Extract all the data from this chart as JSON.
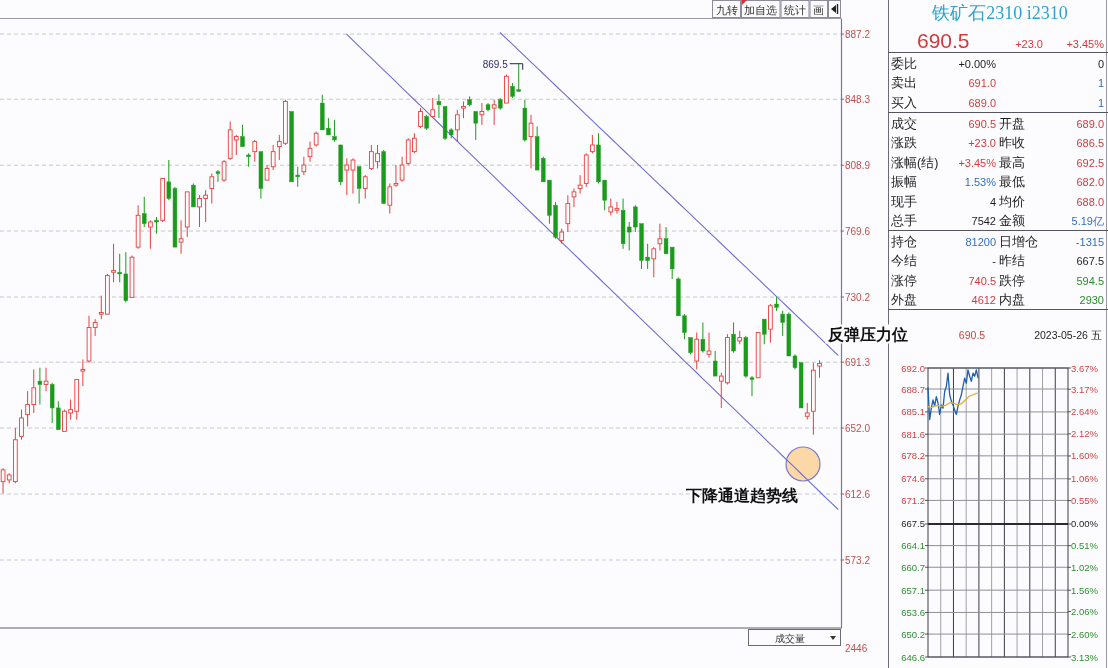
{
  "chart_data": [
    {
      "type": "candlestick",
      "categories": [
        null,
        null,
        null,
        null,
        null,
        null,
        null,
        null,
        null,
        null,
        null,
        null,
        null,
        null,
        null,
        null,
        null,
        null,
        null,
        null,
        null,
        null,
        null,
        null,
        null,
        null,
        null,
        null,
        null,
        null,
        null,
        null,
        null,
        null,
        null,
        null,
        null,
        null,
        null,
        null,
        null,
        null,
        null,
        null,
        null,
        null,
        null,
        null,
        null,
        null,
        null,
        null,
        null,
        null,
        null,
        null,
        null,
        null,
        null,
        null,
        null,
        null,
        null,
        null,
        null,
        null,
        null,
        null,
        null,
        null,
        null,
        null,
        null,
        null,
        null,
        null,
        null,
        null,
        null,
        null,
        null,
        null,
        null,
        null,
        null,
        null,
        null,
        null,
        null,
        null,
        null,
        null,
        null,
        null,
        null,
        null,
        null,
        null,
        null,
        null,
        null,
        null,
        null,
        null,
        null,
        null,
        null,
        null,
        null,
        null,
        null,
        null,
        null,
        null,
        null,
        null,
        null,
        null,
        null,
        null,
        null,
        null,
        null,
        null,
        null,
        null,
        null,
        null,
        null,
        null,
        null,
        null,
        null,
        null,
        null,
        null,
        null
      ],
      "ohlc": [
        [
          620,
          628,
          613,
          627
        ],
        [
          621,
          625,
          619,
          624
        ],
        [
          620,
          652,
          619,
          645
        ],
        [
          647,
          663,
          645,
          658
        ],
        [
          660,
          674,
          653,
          666
        ],
        [
          666,
          687,
          661,
          676
        ],
        [
          680,
          688,
          666,
          678
        ],
        [
          678,
          688,
          674,
          680
        ],
        [
          678,
          679,
          655,
          664
        ],
        [
          664,
          668,
          651,
          651
        ],
        [
          650,
          663,
          650,
          662
        ],
        [
          661,
          669,
          657,
          663
        ],
        [
          662,
          681,
          657,
          681
        ],
        [
          686,
          693,
          677,
          687
        ],
        [
          692,
          719,
          691,
          712
        ],
        [
          712,
          717,
          707,
          715
        ],
        [
          720,
          731,
          717,
          721
        ],
        [
          720,
          744,
          720,
          743
        ],
        [
          745,
          762,
          739,
          746
        ],
        [
          745,
          756,
          739,
          744
        ],
        [
          744,
          757,
          727,
          728
        ],
        [
          730,
          755,
          730,
          754
        ],
        [
          760,
          785,
          759,
          779
        ],
        [
          780,
          790,
          772,
          774
        ],
        [
          772,
          776,
          759,
          775
        ],
        [
          776,
          778,
          768,
          775
        ],
        [
          776,
          801,
          775,
          801
        ],
        [
          799,
          812,
          788,
          789
        ],
        [
          795,
          796,
          760,
          760
        ],
        [
          763,
          776,
          756,
          765
        ],
        [
          772,
          793,
          766,
          793
        ],
        [
          797,
          798,
          784,
          784
        ],
        [
          784,
          791,
          772,
          789
        ],
        [
          789,
          794,
          775,
          791
        ],
        [
          795,
          804,
          786,
          802
        ],
        [
          805,
          806,
          799,
          804
        ],
        [
          800,
          812,
          799,
          811
        ],
        [
          813,
          835,
          812,
          830
        ],
        [
          824,
          827,
          815,
          826
        ],
        [
          826,
          833,
          820,
          820
        ],
        [
          815,
          816,
          808,
          814
        ],
        [
          817,
          824,
          811,
          823
        ],
        [
          817,
          817,
          789,
          795
        ],
        [
          800,
          809,
          800,
          807
        ],
        [
          808,
          821,
          806,
          817
        ],
        [
          820,
          827,
          812,
          823
        ],
        [
          822,
          848,
          821,
          847
        ],
        [
          841,
          841,
          799,
          799
        ],
        [
          803,
          808,
          796,
          802
        ],
        [
          805,
          814,
          803,
          809
        ],
        [
          814,
          823,
          811,
          819
        ],
        [
          821,
          829,
          820,
          828
        ],
        [
          846,
          851,
          830,
          830
        ],
        [
          831,
          837,
          827,
          827
        ],
        [
          826,
          836,
          823,
          824
        ],
        [
          821,
          821,
          797,
          799
        ],
        [
          806,
          813,
          791,
          809
        ],
        [
          806,
          813,
          792,
          812
        ],
        [
          808,
          808,
          786,
          795
        ],
        [
          795,
          803,
          789,
          802
        ],
        [
          807,
          821,
          806,
          817
        ],
        [
          811,
          821,
          807,
          816
        ],
        [
          817,
          818,
          786,
          786
        ],
        [
          785,
          798,
          780,
          796
        ],
        [
          797,
          809,
          796,
          798
        ],
        [
          800,
          814,
          799,
          809
        ],
        [
          810,
          825,
          809,
          824
        ],
        [
          817,
          828,
          816,
          825
        ],
        [
          832,
          843,
          831,
          841
        ],
        [
          838,
          839,
          830,
          831
        ],
        [
          838,
          849,
          838,
          842
        ],
        [
          847,
          851,
          837,
          845
        ],
        [
          844,
          844,
          824,
          825
        ],
        [
          830,
          831,
          825,
          827
        ],
        [
          830,
          842,
          823,
          839
        ],
        [
          843,
          847,
          837,
          844
        ],
        [
          848,
          850,
          844,
          845
        ],
        [
          841,
          841,
          824,
          834
        ],
        [
          839,
          846,
          833,
          841
        ],
        [
          845,
          846,
          841,
          842
        ],
        [
          843,
          848,
          833,
          845
        ],
        [
          848,
          849,
          842,
          843
        ],
        [
          846,
          863,
          846,
          862
        ],
        [
          856,
          858,
          849,
          850
        ],
        [
          854,
          869.5,
          853,
          853
        ],
        [
          843,
          848,
          823,
          824
        ],
        [
          826,
          839,
          807,
          834
        ],
        [
          826,
          832,
          806,
          806
        ],
        [
          813,
          814,
          799,
          799
        ],
        [
          800,
          800,
          774,
          779
        ],
        [
          785,
          787,
          765,
          766
        ],
        [
          764,
          771,
          762,
          769
        ],
        [
          774,
          791,
          769,
          786
        ],
        [
          790,
          795,
          784,
          793
        ],
        [
          795,
          803,
          792,
          797
        ],
        [
          798,
          816,
          796,
          815
        ],
        [
          817,
          827,
          816,
          821
        ],
        [
          821,
          828,
          798,
          799
        ],
        [
          800,
          800,
          782,
          788
        ],
        [
          781,
          789,
          779,
          784
        ],
        [
          782,
          787,
          780,
          783
        ],
        [
          782,
          789,
          759,
          762
        ],
        [
          772,
          775,
          758,
          769
        ],
        [
          784,
          785,
          769,
          772
        ],
        [
          774,
          774,
          747,
          752
        ],
        [
          754,
          762,
          747,
          752
        ],
        [
          753,
          760,
          742,
          759
        ],
        [
          762,
          774,
          758,
          765
        ],
        [
          765,
          772,
          756,
          756
        ],
        [
          760,
          760,
          741,
          747
        ],
        [
          741,
          742,
          719,
          719
        ],
        [
          719,
          720,
          705,
          709
        ],
        [
          706,
          706,
          696,
          697
        ],
        [
          692,
          709,
          687,
          705
        ],
        [
          705,
          715,
          697,
          698
        ],
        [
          696,
          709,
          694,
          698
        ],
        [
          692,
          698,
          683,
          683
        ],
        [
          680,
          685,
          664,
          683
        ],
        [
          679,
          708,
          678,
          706
        ],
        [
          708,
          715,
          697,
          698
        ],
        [
          704,
          710,
          702,
          706
        ],
        [
          706,
          707,
          682,
          683
        ],
        [
          682,
          683,
          671,
          681
        ],
        [
          682,
          709,
          682,
          709
        ],
        [
          717,
          717,
          702,
          708
        ],
        [
          711,
          726,
          703,
          725
        ],
        [
          726,
          730,
          722,
          724
        ],
        [
          720,
          722,
          707,
          715
        ],
        [
          720,
          721,
          695,
          695
        ],
        [
          695,
          696,
          687,
          688
        ],
        [
          691,
          691,
          664,
          664
        ],
        [
          659,
          667,
          657,
          661
        ],
        [
          662,
          691,
          648,
          686.5
        ],
        [
          689.0,
          692.5,
          682.0,
          690.5
        ],
        null,
        null,
        null
      ],
      "colors": [
        "#e5403b",
        "#e5403b",
        "#e5403b",
        "#e5403b",
        "#e5403b",
        "#e5403b",
        "#1b9b1b",
        "#e5403b",
        "#1b9b1b",
        "#1b9b1b",
        "#e5403b",
        "#e5403b",
        "#e5403b",
        "#e5403b",
        "#e5403b",
        "#e5403b",
        "#e5403b",
        "#e5403b",
        "#e5403b",
        "#1b9b1b",
        "#1b9b1b",
        "#e5403b",
        "#e5403b",
        "#1b9b1b",
        "#e5403b",
        "#1b9b1b",
        "#e5403b",
        "#1b9b1b",
        "#1b9b1b",
        "#e5403b",
        "#e5403b",
        "#1b9b1b",
        "#e5403b",
        "#e5403b",
        "#e5403b",
        "#1b9b1b",
        "#e5403b",
        "#e5403b",
        "#e5403b",
        "#1b9b1b",
        "#1b9b1b",
        "#e5403b",
        "#1b9b1b",
        "#e5403b",
        "#e5403b",
        "#e5403b",
        "#e5403b",
        "#1b9b1b",
        "#1b9b1b",
        "#e5403b",
        "#e5403b",
        "#e5403b",
        "#1b9b1b",
        "#1b9b1b",
        "#1b9b1b",
        "#1b9b1b",
        "#e5403b",
        "#e5403b",
        "#1b9b1b",
        "#e5403b",
        "#e5403b",
        "#e5403b",
        "#1b9b1b",
        "#e5403b",
        "#e5403b",
        "#e5403b",
        "#e5403b",
        "#e5403b",
        "#e5403b",
        "#1b9b1b",
        "#e5403b",
        "#1b9b1b",
        "#1b9b1b",
        "#1b9b1b",
        "#e5403b",
        "#e5403b",
        "#1b9b1b",
        "#1b9b1b",
        "#e5403b",
        "#1b9b1b",
        "#e5403b",
        "#1b9b1b",
        "#e5403b",
        "#1b9b1b",
        "#1b9b1b",
        "#1b9b1b",
        "#e5403b",
        "#1b9b1b",
        "#1b9b1b",
        "#1b9b1b",
        "#1b9b1b",
        "#e5403b",
        "#e5403b",
        "#e5403b",
        "#e5403b",
        "#e5403b",
        "#e5403b",
        "#1b9b1b",
        "#1b9b1b",
        "#e5403b",
        "#e5403b",
        "#1b9b1b",
        "#1b9b1b",
        "#1b9b1b",
        "#1b9b1b",
        "#1b9b1b",
        "#e5403b",
        "#e5403b",
        "#1b9b1b",
        "#1b9b1b",
        "#1b9b1b",
        "#1b9b1b",
        "#1b9b1b",
        "#e5403b",
        "#1b9b1b",
        "#e5403b",
        "#1b9b1b",
        "#e5403b",
        "#e5403b",
        "#1b9b1b",
        "#e5403b",
        "#1b9b1b",
        "#1b9b1b",
        "#e5403b",
        "#1b9b1b",
        "#e5403b",
        "#1b9b1b",
        "#1b9b1b",
        "#1b9b1b",
        "#1b9b1b",
        "#1b9b1b",
        "#e5403b",
        "#e5403b",
        "#e5403b",
        null,
        null,
        null
      ],
      "series": [
        {
          "type": "line",
          "color": "#6e6ed2",
          "values": [
            null,
            null,
            null,
            null,
            null,
            null,
            null,
            null,
            null,
            null,
            null,
            null,
            null,
            null,
            null,
            null,
            null,
            null,
            null,
            null,
            null,
            null,
            null,
            null,
            null,
            null,
            null,
            null,
            null,
            null,
            null,
            null,
            null,
            null,
            null,
            null,
            null,
            null,
            null,
            null,
            null,
            null,
            null,
            null,
            null,
            null,
            null,
            null,
            null,
            null,
            null,
            null,
            null,
            null,
            null,
            null,
            887.0,
            883.4,
            879.9,
            876.3,
            872.8,
            869.2,
            865.7,
            862.2,
            858.6,
            855.1,
            851.5,
            848.0,
            844.5,
            840.9,
            837.4,
            833.8,
            830.3,
            826.7,
            823.2,
            819.6,
            816.1,
            812.5,
            809.0,
            805.5,
            801.9,
            798.4,
            794.8,
            791.3,
            787.7,
            784.2,
            780.6,
            777.1,
            773.6,
            770.0,
            766.5,
            762.9,
            759.4,
            755.8,
            752.3,
            748.7,
            745.2,
            741.7,
            738.1,
            734.6,
            731.0,
            727.5,
            723.9,
            720.4,
            716.9,
            713.3,
            709.8,
            706.2,
            702.7,
            699.1,
            695.6,
            692.0,
            688.5,
            685.0,
            681.4,
            677.9,
            674.3,
            670.8,
            667.2,
            663.7,
            660.1,
            656.6,
            653.1,
            649.5,
            646.0,
            642.4,
            638.9,
            635.3,
            631.8,
            628.3,
            624.7,
            621.2,
            617.6,
            614.1,
            610.5,
            607.0,
            603.5
          ]
        },
        {
          "type": "line",
          "color": "#6e6ed2",
          "values": [
            null,
            null,
            null,
            null,
            null,
            null,
            null,
            null,
            null,
            null,
            null,
            null,
            null,
            null,
            null,
            null,
            null,
            null,
            null,
            null,
            null,
            null,
            null,
            null,
            null,
            null,
            null,
            null,
            null,
            null,
            null,
            null,
            null,
            null,
            null,
            null,
            null,
            null,
            null,
            null,
            null,
            null,
            null,
            null,
            null,
            null,
            null,
            null,
            null,
            null,
            null,
            null,
            null,
            null,
            null,
            null,
            null,
            null,
            null,
            null,
            null,
            null,
            null,
            null,
            null,
            null,
            null,
            null,
            null,
            null,
            null,
            null,
            null,
            null,
            null,
            null,
            null,
            null,
            null,
            null,
            null,
            888.0,
            884.5,
            881.0,
            877.5,
            874.0,
            870.5,
            867.0,
            863.5,
            860.0,
            856.5,
            853.0,
            849.5,
            846.0,
            842.5,
            839.0,
            835.5,
            832.0,
            828.5,
            825.0,
            821.5,
            818.0,
            814.5,
            811.0,
            807.5,
            804.0,
            800.5,
            797.0,
            793.5,
            790.0,
            786.5,
            783.0,
            779.5,
            776.0,
            772.5,
            769.0,
            765.5,
            762.0,
            758.5,
            755.0,
            751.5,
            748.0,
            744.5,
            741.0,
            737.5,
            734.0,
            730.5,
            727.0,
            723.5,
            720.0,
            716.5,
            713.0,
            709.5,
            706.0,
            702.5,
            699.0,
            695.5
          ]
        }
      ],
      "ylim": [
        533.2,
        895.6
      ],
      "yticks": [
        887.2,
        848.3,
        808.9,
        769.6,
        730.2,
        691.3,
        {
          "value": 652.0,
          "label": "652.0"
        },
        612.6,
        573.2
      ],
      "grid": "y",
      "annotations": [
        "869.5",
        "反弹压力位",
        "下降通道趋势线",
        "成交量",
        "2446",
        "九转",
        "加自选",
        "统计",
        "画"
      ]
    },
    {
      "type": "other",
      "title": "铁矿石2310 i2310",
      "color": "#2ea2cc",
      "annotations": [
        "690.5",
        "+23.0",
        "+3.45%",
        "委比",
        "+0.00%",
        "0",
        "卖出",
        "691.0",
        "1",
        "买入",
        "689.0",
        "1",
        "成交",
        "690.5",
        "开盘",
        "689.0",
        "涨跌",
        "+23.0",
        "昨收",
        "686.5",
        "涨幅(结)",
        "+3.45%",
        "最高",
        "692.5",
        "振幅",
        "1.53%",
        "最低",
        "682.0",
        "现手",
        "4",
        "均价",
        "688.0",
        "总手",
        "7542",
        "金额",
        "5.19亿",
        "持仓",
        "81200",
        "日增仓",
        "-1315",
        "今结",
        "-",
        "昨结",
        "667.5",
        "涨停",
        "740.5",
        "跌停",
        "594.5",
        "外盘",
        "4612",
        "内盘",
        "2930"
      ],
      "colors": [
        "#d23b3b",
        "#d23b3b",
        "#d23b3b",
        "#1e1e1e",
        "#1e1e1e",
        "#1e1e1e",
        "#1e1e1e",
        "#d23b3b",
        "#2f6fc2",
        "#1e1e1e",
        "#d23b3b",
        "#2f6fc2",
        "#1e1e1e",
        "#d23b3b",
        "#1e1e1e",
        "#d23b3b",
        "#1e1e1e",
        "#d23b3b",
        "#1e1e1e",
        "#d23b3b",
        "#1e1e1e",
        "#d23b3b",
        "#1e1e1e",
        "#d23b3b",
        "#1e1e1e",
        "#2f6fc2",
        "#1e1e1e",
        "#d23b3b",
        "#1e1e1e",
        "#1e1e1e",
        "#1e1e1e",
        "#d23b3b",
        "#1e1e1e",
        "#1e1e1e",
        "#1e1e1e",
        "#2f6fc2",
        "#1e1e1e",
        "#2f6fc2",
        "#1e1e1e",
        "#2f6fc2",
        "#1e1e1e",
        "#1e1e1e",
        "#1e1e1e",
        "#1e1e1e",
        "#1e1e1e",
        "#d23b3b",
        "#1e1e1e",
        "#2a8c2a",
        "#1e1e1e",
        "#d23b3b",
        "#1e1e1e",
        "#2a8c2a"
      ]
    },
    {
      "type": "line",
      "categories": [
        null,
        null,
        null,
        null,
        null,
        null,
        null,
        null,
        null,
        null,
        null,
        null,
        null,
        null,
        null,
        null,
        null,
        null,
        null,
        null,
        null,
        null,
        null,
        null,
        null,
        null,
        null,
        null,
        null,
        null,
        null,
        null,
        null,
        null,
        null,
        null,
        null,
        null,
        null,
        null,
        null,
        null,
        null,
        null,
        null,
        null,
        null,
        null,
        null,
        null,
        null,
        null,
        null,
        null,
        null,
        null,
        null,
        null,
        null,
        null,
        null,
        null,
        null,
        null,
        null,
        null,
        null,
        null,
        null,
        null,
        null,
        null,
        null,
        null,
        null,
        null,
        null,
        null,
        null,
        null,
        null,
        null,
        null,
        null,
        null
      ],
      "series": [
        {
          "color": "#1f5fae",
          "values": [
            688.9,
            683.9,
            685.7,
            687.0,
            686.0,
            687.5,
            686.5,
            684.7,
            686.2,
            685.7,
            688.3,
            689.1,
            691.2,
            687.8,
            686.8,
            686.2,
            685.4,
            684.7,
            686.0,
            687.0,
            687.8,
            689.1,
            690.4,
            689.6,
            691.7,
            690.7,
            689.9,
            691.2,
            690.7,
            691.7,
            690.5,
            null,
            null,
            null,
            null,
            null,
            null,
            null,
            null,
            null,
            null,
            null,
            null,
            null,
            null,
            null,
            null,
            null,
            null,
            null,
            null,
            null,
            null,
            null,
            null,
            null,
            null,
            null,
            null,
            null,
            null,
            null,
            null,
            null,
            null,
            null,
            null,
            null,
            null,
            null,
            null,
            null,
            null,
            null,
            null,
            null,
            null,
            null,
            null,
            null,
            null,
            null,
            null,
            null,
            null
          ]
        },
        {
          "color": "#e2b236",
          "values": [
            686.0,
            685.8,
            685.8,
            685.9,
            686.0,
            686.1,
            686.1,
            686.0,
            686.0,
            686.0,
            686.1,
            686.2,
            686.4,
            686.5,
            686.5,
            686.5,
            686.4,
            686.3,
            686.3,
            686.3,
            686.4,
            686.6,
            686.9,
            687.1,
            687.4,
            687.6,
            687.7,
            687.8,
            687.9,
            688.0,
            688.0,
            null,
            null,
            null,
            null,
            null,
            null,
            null,
            null,
            null,
            null,
            null,
            null,
            null,
            null,
            null,
            null,
            null,
            null,
            null,
            null,
            null,
            null,
            null,
            null,
            null,
            null,
            null,
            null,
            null,
            null,
            null,
            null,
            null,
            null,
            null,
            null,
            null,
            null,
            null,
            null,
            null,
            null,
            null,
            null,
            null,
            null,
            null,
            null,
            null,
            null,
            null,
            null,
            null,
            null
          ]
        }
      ],
      "ylim": [
        646.6,
        692.0
      ],
      "yticks": [
        {
          "value": 692.0,
          "label": "692.0"
        },
        688.7,
        685.1,
        681.6,
        678.2,
        674.6,
        671.2,
        667.5,
        664.1,
        660.7,
        657.1,
        653.6,
        650.2,
        646.6
      ],
      "y2lim": [
        -3.13,
        3.67
      ],
      "y2ticks": [
        {
          "value": 3.67,
          "label": "3.67%"
        },
        {
          "value": 3.17,
          "label": "3.17%"
        },
        {
          "value": 2.64,
          "label": "2.64%"
        },
        {
          "value": 2.12,
          "label": "2.12%"
        },
        {
          "value": 1.6,
          "label": "1.60%"
        },
        {
          "value": 1.06,
          "label": "1.06%"
        },
        {
          "value": 0.55,
          "label": "0.55%"
        },
        {
          "value": 0.0,
          "label": "0.00%"
        },
        {
          "value": -0.51,
          "label": "0.51%"
        },
        {
          "value": -1.02,
          "label": "1.02%"
        },
        {
          "value": -1.56,
          "label": "1.56%"
        },
        {
          "value": -2.06,
          "label": "2.06%"
        },
        {
          "value": -2.6,
          "label": "2.60%"
        },
        {
          "value": -3.13,
          "label": "3.13%"
        }
      ],
      "grid": true,
      "ref_lines": [
        {
          "axis": "y",
          "value": 667.5,
          "color": "#2a2a34"
        }
      ],
      "annotations": [
        "690.5",
        "2023-05-26 五"
      ]
    }
  ]
}
